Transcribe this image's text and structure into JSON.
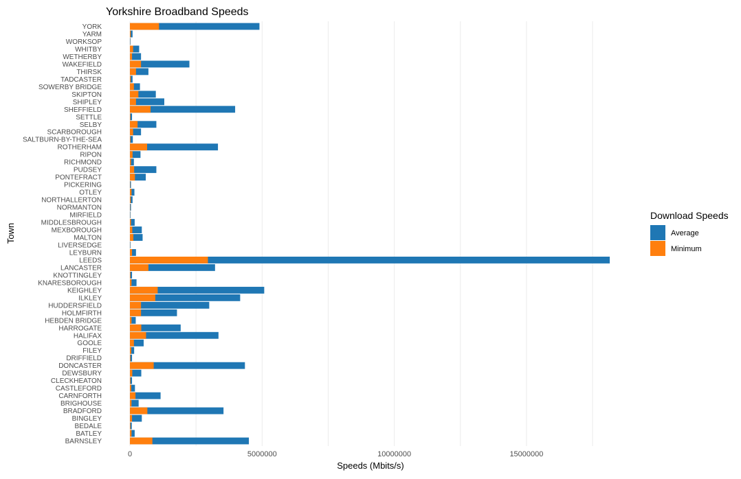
{
  "chart_data": {
    "type": "bar",
    "orientation": "horizontal",
    "title": "Yorkshire Broadband Speeds",
    "xlabel": "Speeds (Mbits/s)",
    "ylabel": "Town",
    "xlim": [
      0,
      18200000
    ],
    "xticks": [
      0,
      5000000,
      10000000,
      15000000
    ],
    "grid": true,
    "legend_title": "Download Speeds",
    "legend_position": "right",
    "categories": [
      "YORK",
      "YARM",
      "WORKSOP",
      "WHITBY",
      "WETHERBY",
      "WAKEFIELD",
      "THIRSK",
      "TADCASTER",
      "SOWERBY BRIDGE",
      "SKIPTON",
      "SHIPLEY",
      "SHEFFIELD",
      "SETTLE",
      "SELBY",
      "SCARBOROUGH",
      "SALTBURN-BY-THE-SEA",
      "ROTHERHAM",
      "RIPON",
      "RICHMOND",
      "PUDSEY",
      "PONTEFRACT",
      "PICKERING",
      "OTLEY",
      "NORTHALLERTON",
      "NORMANTON",
      "MIRFIELD",
      "MIDDLESBROUGH",
      "MEXBOROUGH",
      "MALTON",
      "LIVERSEDGE",
      "LEYBURN",
      "LEEDS",
      "LANCASTER",
      "KNOTTINGLEY",
      "KNARESBOROUGH",
      "KEIGHLEY",
      "ILKLEY",
      "HUDDERSFIELD",
      "HOLMFIRTH",
      "HEBDEN BRIDGE",
      "HARROGATE",
      "HALIFAX",
      "GOOLE",
      "FILEY",
      "DRIFFIELD",
      "DONCASTER",
      "DEWSBURY",
      "CLECKHEATON",
      "CASTLEFORD",
      "CARNFORTH",
      "BRIGHOUSE",
      "BRADFORD",
      "BINGLEY",
      "BEDALE",
      "BATLEY",
      "BARNSLEY"
    ],
    "series": [
      {
        "name": "Average",
        "color": "#1f77b4",
        "values": [
          4900000,
          100000,
          20000,
          350000,
          420000,
          2250000,
          700000,
          100000,
          380000,
          980000,
          1300000,
          3980000,
          80000,
          1000000,
          420000,
          110000,
          3330000,
          400000,
          150000,
          1000000,
          600000,
          40000,
          170000,
          100000,
          40000,
          20000,
          180000,
          450000,
          480000,
          20000,
          230000,
          18150000,
          3220000,
          80000,
          250000,
          5080000,
          4170000,
          3000000,
          1780000,
          220000,
          1920000,
          3350000,
          520000,
          160000,
          80000,
          4350000,
          430000,
          80000,
          190000,
          1160000,
          330000,
          3540000,
          450000,
          70000,
          180000,
          4500000
        ]
      },
      {
        "name": "Minimum",
        "color": "#ff7f0e",
        "values": [
          1100000,
          30000,
          5000,
          120000,
          80000,
          420000,
          230000,
          30000,
          150000,
          320000,
          230000,
          780000,
          20000,
          290000,
          120000,
          20000,
          650000,
          100000,
          40000,
          160000,
          190000,
          10000,
          60000,
          30000,
          10000,
          5000,
          40000,
          90000,
          130000,
          5000,
          80000,
          2950000,
          700000,
          20000,
          60000,
          1050000,
          960000,
          420000,
          420000,
          60000,
          430000,
          610000,
          150000,
          50000,
          20000,
          900000,
          90000,
          20000,
          50000,
          210000,
          60000,
          660000,
          80000,
          20000,
          60000,
          850000
        ]
      }
    ]
  }
}
